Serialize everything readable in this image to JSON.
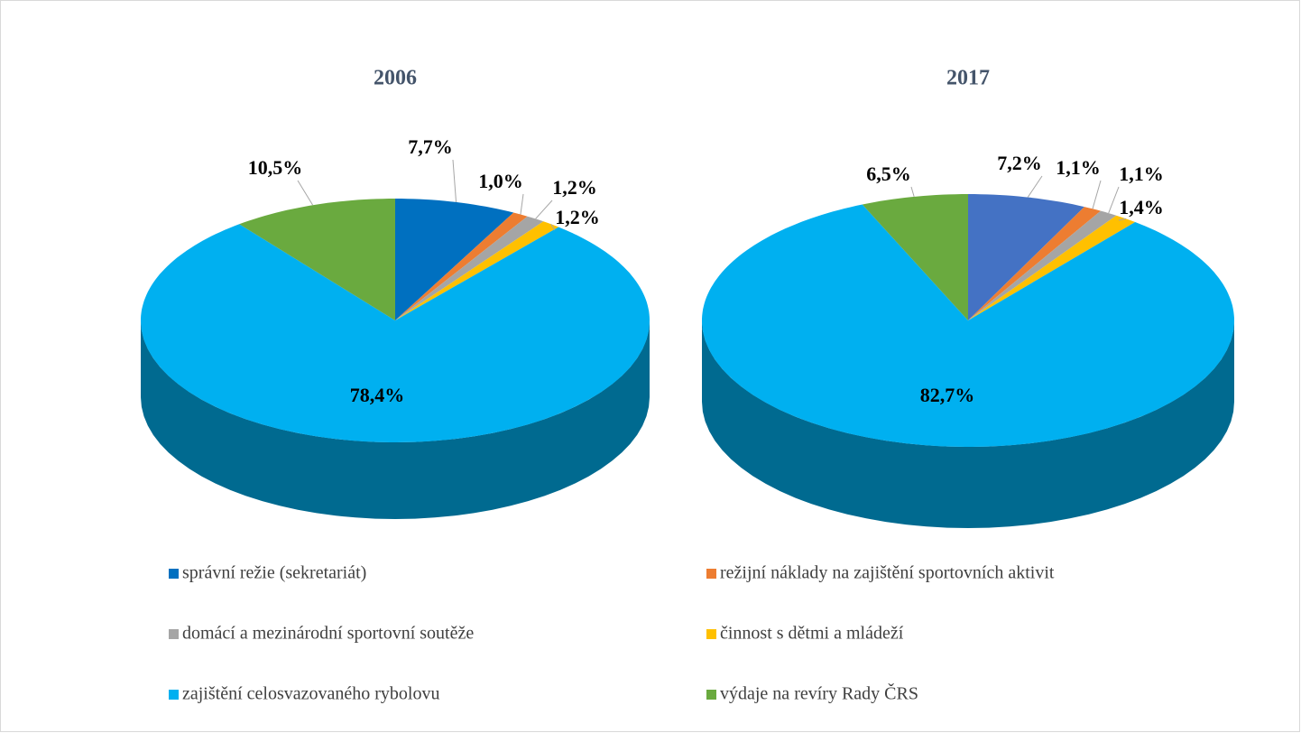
{
  "chart_data": [
    {
      "type": "pie3d",
      "title": "2006",
      "categories": [
        "správní režie (sekretariát)",
        "režijní náklady na zajištění sportovních aktivit",
        "domácí a mezinárodní sportovní soutěže",
        "činnost s dětmi a mládeží",
        "zajištění celosvazovaného rybolovu",
        "výdaje na revíry Rady ČRS"
      ],
      "values": [
        7.7,
        1.0,
        1.2,
        1.2,
        78.4,
        10.5
      ],
      "value_labels": [
        "7,7%",
        "1,0%",
        "1,2%",
        "1,2%",
        "78,4%",
        "10,5%"
      ],
      "colors": [
        "#0070c0",
        "#ed7d31",
        "#a5a5a5",
        "#ffc000",
        "#00b0f0",
        "#6aaa3f"
      ]
    },
    {
      "type": "pie3d",
      "title": "2017",
      "values": [
        7.2,
        1.1,
        1.1,
        1.4,
        82.7,
        6.5
      ],
      "value_labels": [
        "7,2%",
        "1,1%",
        "1,1%",
        "1,4%",
        "82,7%",
        "6,5%"
      ],
      "colors": [
        "#4472c4",
        "#ed7d31",
        "#a5a5a5",
        "#ffc000",
        "#00b0f0",
        "#6aaa3f"
      ]
    }
  ]
}
